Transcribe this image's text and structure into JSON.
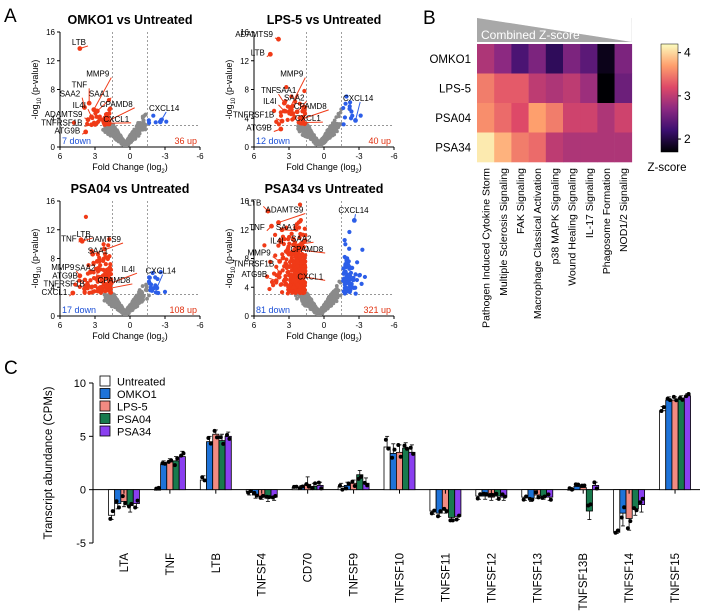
{
  "panel_labels": [
    "A",
    "B",
    "C"
  ],
  "chart_data": [
    {
      "type": "scatter",
      "panel": "A",
      "xlabel": "Fold Change (log2)",
      "ylabel": "-log10 (p-value)",
      "xlim": [
        6,
        -6
      ],
      "ylim": [
        0,
        16
      ],
      "xticks": [
        "6",
        "3",
        "0",
        "-3",
        "-6"
      ],
      "yticks": [
        "0",
        "4",
        "8",
        "12",
        "16"
      ],
      "subplots": [
        {
          "title": "OMKO1 vs Untreated",
          "down_label": "7 down",
          "up_label": "36 up",
          "labels": [
            {
              "text": "LTB",
              "px": 4.3,
              "py": 13.7,
              "tx": 3.6,
              "ty": 14.2,
              "left": false
            },
            {
              "text": "MMP9",
              "px": 3.1,
              "py": 5.2,
              "tx": 1.6,
              "ty": 9.8,
              "left": false
            },
            {
              "text": "TNF",
              "px": 3.5,
              "py": 6.1,
              "tx": 3.5,
              "ty": 8.3,
              "left": false
            },
            {
              "text": "SAA1",
              "px": 2.8,
              "py": 5.0,
              "tx": 1.6,
              "ty": 7.0,
              "left": false
            },
            {
              "text": "SAA2",
              "px": 3.9,
              "py": 5.5,
              "tx": 4.1,
              "ty": 7.0,
              "left": false
            },
            {
              "text": "CPAMD8",
              "px": 1.8,
              "py": 3.7,
              "tx": -0.4,
              "ty": 5.6,
              "left": false
            },
            {
              "text": "IL4I",
              "px": 3.3,
              "py": 4.2,
              "tx": 3.6,
              "ty": 5.4,
              "left": false
            },
            {
              "text": "ADAMTS9",
              "px": 3.6,
              "py": 3.8,
              "tx": 3.9,
              "ty": 4.2,
              "left": false
            },
            {
              "text": "CXCL1",
              "px": 1.9,
              "py": 3.3,
              "tx": -0.1,
              "ty": 3.5,
              "left": false
            },
            {
              "text": "TNFRSF1B",
              "px": 3.3,
              "py": 3.1,
              "tx": 3.9,
              "ty": 3.0,
              "left": false
            },
            {
              "text": "ATG9B",
              "px": 3.8,
              "py": 2.1,
              "tx": 4.1,
              "ty": 1.9,
              "left": false
            },
            {
              "text": "CXCL14",
              "px": -2.6,
              "py": 3.5,
              "tx": -3.1,
              "ty": 5.0,
              "left": true
            }
          ]
        },
        {
          "title": "LPS-5 vs Untreated",
          "down_label": "12 down",
          "up_label": "40 up",
          "labels": [
            {
              "text": "ADAMTS9",
              "px": 3.9,
              "py": 15.0,
              "tx": 4.2,
              "ty": 15.3,
              "left": false
            },
            {
              "text": "LTB",
              "px": 4.6,
              "py": 12.9,
              "tx": 4.9,
              "ty": 12.7,
              "left": false
            },
            {
              "text": "MMP9",
              "px": 2.9,
              "py": 5.5,
              "tx": 1.6,
              "ty": 9.8,
              "left": false
            },
            {
              "text": "SAA1",
              "px": 2.8,
              "py": 5.2,
              "tx": 2.2,
              "ty": 7.5,
              "left": false
            },
            {
              "text": "TNF",
              "px": 3.4,
              "py": 6.1,
              "tx": 3.9,
              "ty": 7.5,
              "left": false
            },
            {
              "text": "SAA2",
              "px": 2.3,
              "py": 4.9,
              "tx": 1.5,
              "ty": 6.5,
              "left": false
            },
            {
              "text": "IL4I",
              "px": 3.4,
              "py": 5.0,
              "tx": 3.9,
              "ty": 6.0,
              "left": false
            },
            {
              "text": "CPAMD8",
              "px": 1.9,
              "py": 3.9,
              "tx": -0.4,
              "ty": 5.3,
              "left": false
            },
            {
              "text": "CXCL1",
              "px": 1.8,
              "py": 3.4,
              "tx": 0.1,
              "ty": 3.6,
              "left": false
            },
            {
              "text": "TNFRSF1B",
              "px": 3.6,
              "py": 3.6,
              "tx": 4.1,
              "ty": 4.1,
              "left": false
            },
            {
              "text": "ATG9B",
              "px": 3.7,
              "py": 2.5,
              "tx": 4.3,
              "ty": 2.3,
              "left": false
            },
            {
              "text": "CXCL14",
              "px": -2.7,
              "py": 3.7,
              "tx": -3.1,
              "ty": 6.4,
              "left": true
            }
          ]
        },
        {
          "title": "PSA04 vs Untreated",
          "down_label": "17 down",
          "up_label": "108 up",
          "labels": [
            {
              "text": "ADAMTS9",
              "px": 3.2,
              "py": 8.6,
              "tx": 0.6,
              "ty": 10.3,
              "left": false
            },
            {
              "text": "LTB",
              "px": 4.1,
              "py": 10.4,
              "tx": 3.2,
              "ty": 11.0,
              "left": false
            },
            {
              "text": "TNF",
              "px": 4.2,
              "py": 10.6,
              "tx": 4.4,
              "ty": 10.4,
              "left": false
            },
            {
              "text": "SAA1",
              "px": 2.8,
              "py": 7.6,
              "tx": 1.7,
              "ty": 8.7,
              "left": false
            },
            {
              "text": "IL4I",
              "px": 1.6,
              "py": 4.6,
              "tx": -0.6,
              "ty": 6.1,
              "left": false
            },
            {
              "text": "SAA2",
              "px": 2.9,
              "py": 5.2,
              "tx": 2.8,
              "ty": 6.3,
              "left": false
            },
            {
              "text": "MMP9",
              "px": 4.3,
              "py": 5.6,
              "tx": 4.6,
              "ty": 6.4,
              "left": false
            },
            {
              "text": "CPAMD8",
              "px": 1.9,
              "py": 3.8,
              "tx": -0.2,
              "ty": 4.6,
              "left": false
            },
            {
              "text": "ATG9B",
              "px": 3.8,
              "py": 4.2,
              "tx": 4.3,
              "ty": 5.2,
              "left": false
            },
            {
              "text": "TNFRSF1B",
              "px": 3.9,
              "py": 3.8,
              "tx": 3.7,
              "ty": 4.1,
              "left": false
            },
            {
              "text": "CXCL1",
              "px": 4.9,
              "py": 3.2,
              "tx": 5.2,
              "ty": 2.9,
              "left": false
            },
            {
              "text": "CXCL14",
              "px": -2.3,
              "py": 3.9,
              "tx": -2.8,
              "ty": 5.9,
              "left": true
            }
          ]
        },
        {
          "title": "PSA34 vs Untreated",
          "down_label": "81 down",
          "up_label": "321 up",
          "labels": [
            {
              "text": "LTB",
              "px": 4.8,
              "py": 14.6,
              "tx": 5.2,
              "ty": 15.4,
              "left": false
            },
            {
              "text": "ADAMTS9",
              "px": 3.9,
              "py": 13.0,
              "tx": 1.6,
              "ty": 14.4,
              "left": false
            },
            {
              "text": "SAA1",
              "px": 3.6,
              "py": 12.0,
              "tx": 2.2,
              "ty": 12.0,
              "left": false
            },
            {
              "text": "TNF",
              "px": 4.5,
              "py": 12.5,
              "tx": 4.9,
              "ty": 12.0,
              "left": false
            },
            {
              "text": "SAA2",
              "px": 2.6,
              "py": 9.9,
              "tx": 0.9,
              "ty": 10.4,
              "left": false
            },
            {
              "text": "IL4I",
              "px": 3.7,
              "py": 10.3,
              "tx": 3.3,
              "ty": 10.1,
              "left": false
            },
            {
              "text": "CPAMD8",
              "px": 2.1,
              "py": 9.2,
              "tx": -0.1,
              "ty": 8.9,
              "left": false
            },
            {
              "text": "MMP9",
              "px": 3.8,
              "py": 7.6,
              "tx": 4.4,
              "ty": 8.4,
              "left": false
            },
            {
              "text": "CXCL1",
              "px": 1.9,
              "py": 5.5,
              "tx": -0.1,
              "ty": 5.1,
              "left": false
            },
            {
              "text": "TNFRSF1B",
              "px": 3.8,
              "py": 6.0,
              "tx": 4.1,
              "ty": 6.9,
              "left": false
            },
            {
              "text": "ATG9B",
              "px": 4.1,
              "py": 4.9,
              "tx": 4.7,
              "ty": 5.4,
              "left": false
            },
            {
              "text": "CXCL14",
              "px": -2.6,
              "py": 13.3,
              "tx": -2.7,
              "ty": 14.3,
              "left": true
            }
          ]
        }
      ]
    },
    {
      "type": "heatmap",
      "panel": "B",
      "header": "Combined Z-score",
      "rows": [
        "OMKO1",
        "LPS-5",
        "PSA04",
        "PSA34"
      ],
      "columns": [
        "Pathogen Induced Cytokine Storm",
        "Multiple Sclerosis Signaling",
        "FAK Signaling",
        "Macrophage Classical Activation",
        "p38 MAPK Signaling",
        "Wound Healing Signaling",
        "IL-17 Signaling",
        "Phagosome Formation",
        "NOD1/2 Signaling"
      ],
      "values": [
        [
          2.9,
          2.7,
          2.3,
          2.6,
          2.1,
          2.6,
          2.4,
          1.8,
          2.6
        ],
        [
          3.5,
          3.3,
          3.3,
          3.0,
          2.9,
          3.0,
          2.8,
          1.7,
          2.5
        ],
        [
          3.6,
          3.4,
          3.2,
          3.7,
          3.5,
          3.1,
          3.1,
          2.9,
          3.1
        ],
        [
          4.1,
          3.8,
          3.5,
          3.4,
          3.0,
          2.9,
          2.9,
          2.9,
          2.9
        ]
      ],
      "colorbar": {
        "label": "Z-score",
        "min": 1.7,
        "max": 4.2,
        "ticks": [
          "2",
          "3",
          "4"
        ],
        "colors": [
          "#000004",
          "#3b0f70",
          "#8c2981",
          "#de4968",
          "#fe9f6d",
          "#fcfdbf"
        ]
      }
    },
    {
      "type": "bar",
      "panel": "C",
      "ylabel": "Transcript abundance (CPMs)",
      "ylim": [
        -5,
        10
      ],
      "yticks": [
        "-5",
        "0",
        "5",
        "10"
      ],
      "categories": [
        "LTA",
        "TNF",
        "LTB",
        "TNFSF4",
        "CD70",
        "TNFSF9",
        "TNFSF10",
        "TNFSF11",
        "TNFSF12",
        "TNFSF13",
        "TNFSF13B",
        "TNFSF14",
        "TNFSF15"
      ],
      "series": [
        {
          "name": "Untreated",
          "color": "#ffffff",
          "values": [
            -2.4,
            0.0,
            0.9,
            -0.2,
            0.2,
            0.3,
            4.0,
            -2.0,
            -0.6,
            -0.7,
            0.0,
            -4.0,
            7.4
          ],
          "errors": [
            0.4,
            0.0,
            0.4,
            0.3,
            0.2,
            0.3,
            1.0,
            0.3,
            0.3,
            0.3,
            0.2,
            0.1,
            0.4
          ]
        },
        {
          "name": "OMKO1",
          "color": "#1e73d9",
          "values": [
            -1.3,
            2.4,
            4.5,
            -0.5,
            0.2,
            0.4,
            3.4,
            -2.2,
            -0.6,
            -0.8,
            0.3,
            -2.2,
            8.4
          ],
          "errors": [
            0.5,
            0.3,
            0.5,
            0.3,
            0.2,
            0.3,
            0.9,
            0.3,
            0.3,
            0.3,
            0.3,
            1.2,
            0.3
          ]
        },
        {
          "name": "LPS-5",
          "color": "#f28b82",
          "values": [
            -1.1,
            2.6,
            5.2,
            -0.6,
            0.5,
            0.6,
            3.5,
            -1.9,
            -0.7,
            -0.5,
            0.2,
            -2.7,
            8.4
          ],
          "errors": [
            0.5,
            0.3,
            0.4,
            0.3,
            0.7,
            0.3,
            0.7,
            0.3,
            0.3,
            0.3,
            0.2,
            1.1,
            0.3
          ]
        },
        {
          "name": "PSA04",
          "color": "#187a4d",
          "values": [
            -1.5,
            2.7,
            4.6,
            -0.8,
            0.3,
            1.4,
            3.9,
            -2.6,
            -0.6,
            -0.6,
            -2.0,
            -1.8,
            8.6
          ],
          "errors": [
            0.6,
            0.4,
            0.6,
            0.3,
            0.3,
            0.4,
            0.5,
            0.3,
            0.3,
            0.3,
            0.8,
            0.6,
            0.2
          ]
        },
        {
          "name": "PSA34",
          "color": "#8a3ff0",
          "values": [
            -1.3,
            3.1,
            5.0,
            -0.7,
            0.4,
            0.6,
            3.5,
            -2.5,
            -0.7,
            -0.7,
            0.4,
            -1.4,
            8.8
          ],
          "errors": [
            0.4,
            0.5,
            0.4,
            0.3,
            0.3,
            0.5,
            0.7,
            0.3,
            0.3,
            0.3,
            0.3,
            0.7,
            0.2
          ]
        }
      ]
    }
  ]
}
